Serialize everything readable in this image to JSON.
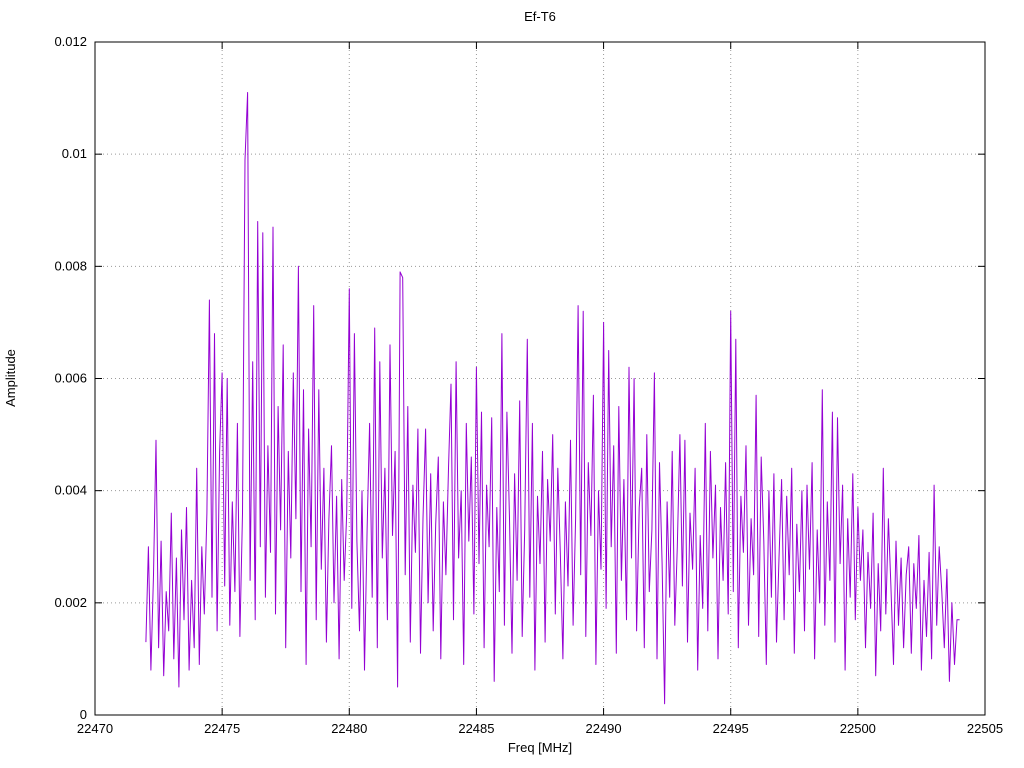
{
  "chart_data": {
    "type": "line",
    "title": "Ef-T6",
    "xlabel": "Freq [MHz]",
    "ylabel": "Amplitude",
    "xlim": [
      22470,
      22505
    ],
    "ylim": [
      0,
      0.012
    ],
    "x_ticks": [
      22470,
      22475,
      22480,
      22485,
      22490,
      22495,
      22500,
      22505
    ],
    "x_tick_labels": [
      "22470",
      "22475",
      "22480",
      "22485",
      "22490",
      "22495",
      "22500",
      "22505"
    ],
    "y_ticks": [
      0,
      0.002,
      0.004,
      0.006,
      0.008,
      0.01,
      0.012
    ],
    "y_tick_labels": [
      "0",
      "0.002",
      "0.004",
      "0.006",
      "0.008",
      "0.01",
      "0.012"
    ],
    "grid": true,
    "grid_style": "dotted",
    "legend_position": "none",
    "line_color": "#9400d3",
    "series": [
      {
        "name": "Ef-T6",
        "color": "#9400d3",
        "x_start": 22472.0,
        "x_step": 0.1,
        "values": [
          0.0013,
          0.003,
          0.0008,
          0.0025,
          0.0049,
          0.0012,
          0.0031,
          0.0007,
          0.0022,
          0.0015,
          0.0036,
          0.001,
          0.0028,
          0.0005,
          0.0033,
          0.0017,
          0.0037,
          0.0008,
          0.0024,
          0.0012,
          0.0044,
          0.0009,
          0.003,
          0.0018,
          0.0036,
          0.0074,
          0.0021,
          0.0068,
          0.0015,
          0.0047,
          0.0061,
          0.0023,
          0.006,
          0.0016,
          0.0038,
          0.0022,
          0.0052,
          0.0014,
          0.0036,
          0.0099,
          0.0111,
          0.0024,
          0.0063,
          0.0017,
          0.0088,
          0.003,
          0.0086,
          0.0021,
          0.0048,
          0.0029,
          0.0087,
          0.0018,
          0.0055,
          0.0033,
          0.0066,
          0.0012,
          0.0047,
          0.0028,
          0.0061,
          0.0035,
          0.008,
          0.0022,
          0.0058,
          0.0009,
          0.0051,
          0.003,
          0.0073,
          0.0017,
          0.0058,
          0.0026,
          0.0044,
          0.0013,
          0.0035,
          0.0048,
          0.002,
          0.0039,
          0.001,
          0.0042,
          0.0024,
          0.0036,
          0.0076,
          0.0019,
          0.0068,
          0.0031,
          0.0015,
          0.004,
          0.0008,
          0.0033,
          0.0052,
          0.0021,
          0.0069,
          0.0012,
          0.0063,
          0.0028,
          0.0044,
          0.0017,
          0.0066,
          0.0032,
          0.0047,
          0.0005,
          0.0079,
          0.0078,
          0.0025,
          0.0055,
          0.0013,
          0.0041,
          0.0029,
          0.0051,
          0.0011,
          0.0035,
          0.0051,
          0.002,
          0.0043,
          0.0015,
          0.0034,
          0.0046,
          0.001,
          0.0038,
          0.0025,
          0.0044,
          0.0059,
          0.0017,
          0.0063,
          0.0028,
          0.004,
          0.0009,
          0.0052,
          0.0031,
          0.0046,
          0.0018,
          0.0062,
          0.0027,
          0.0054,
          0.0012,
          0.0041,
          0.003,
          0.0053,
          0.0006,
          0.0037,
          0.0022,
          0.0068,
          0.0016,
          0.0054,
          0.0035,
          0.0011,
          0.0043,
          0.0024,
          0.0056,
          0.0014,
          0.0033,
          0.0067,
          0.0021,
          0.0052,
          0.0008,
          0.0039,
          0.0027,
          0.0047,
          0.0013,
          0.0042,
          0.0031,
          0.005,
          0.0018,
          0.0044,
          0.0029,
          0.001,
          0.0038,
          0.0023,
          0.0049,
          0.0016,
          0.0035,
          0.0073,
          0.0025,
          0.0072,
          0.0014,
          0.0045,
          0.0032,
          0.0057,
          0.0009,
          0.004,
          0.0026,
          0.007,
          0.0019,
          0.0065,
          0.003,
          0.0048,
          0.0011,
          0.0055,
          0.0024,
          0.0042,
          0.0017,
          0.0062,
          0.0028,
          0.006,
          0.0015,
          0.0037,
          0.0044,
          0.0012,
          0.005,
          0.0022,
          0.0033,
          0.0061,
          0.001,
          0.0045,
          0.0027,
          0.0002,
          0.0038,
          0.0021,
          0.0047,
          0.0016,
          0.003,
          0.005,
          0.0023,
          0.0049,
          0.0013,
          0.0036,
          0.0026,
          0.0044,
          0.0008,
          0.0032,
          0.0019,
          0.0052,
          0.0015,
          0.0047,
          0.0028,
          0.0041,
          0.001,
          0.0037,
          0.0024,
          0.0045,
          0.0018,
          0.0072,
          0.0022,
          0.0067,
          0.0012,
          0.0039,
          0.0029,
          0.0048,
          0.0016,
          0.0035,
          0.0025,
          0.0057,
          0.0014,
          0.0046,
          0.0031,
          0.0009,
          0.004,
          0.0021,
          0.0043,
          0.0013,
          0.0028,
          0.0042,
          0.0017,
          0.0039,
          0.0025,
          0.0044,
          0.0011,
          0.0034,
          0.0022,
          0.004,
          0.0015,
          0.0041,
          0.0026,
          0.0045,
          0.001,
          0.0033,
          0.002,
          0.0058,
          0.0016,
          0.0038,
          0.0024,
          0.0054,
          0.0013,
          0.0053,
          0.0027,
          0.0041,
          0.0008,
          0.0035,
          0.0021,
          0.0043,
          0.0017,
          0.0037,
          0.0024,
          0.0033,
          0.0012,
          0.0029,
          0.0019,
          0.0036,
          0.0007,
          0.0027,
          0.0015,
          0.0044,
          0.0018,
          0.0035,
          0.0023,
          0.0009,
          0.0031,
          0.0016,
          0.0028,
          0.0012,
          0.0025,
          0.003,
          0.0011,
          0.0027,
          0.0019,
          0.0032,
          0.0008,
          0.0024,
          0.0014,
          0.0029,
          0.001,
          0.0041,
          0.0016,
          0.003,
          0.0022,
          0.0012,
          0.0026,
          0.0006,
          0.002,
          0.0009,
          0.0017,
          0.0017
        ]
      }
    ]
  }
}
